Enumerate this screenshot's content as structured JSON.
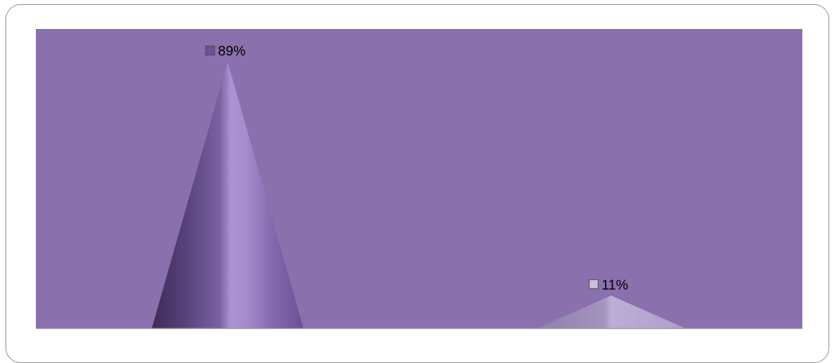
{
  "chart_data": {
    "type": "bar",
    "shape": "cone",
    "categories": [
      "",
      ""
    ],
    "values": [
      89,
      11
    ],
    "value_unit": "%",
    "data_labels": [
      "89%",
      "11%"
    ],
    "title": "",
    "xlabel": "",
    "ylabel": "",
    "ylim": [
      0,
      100
    ],
    "grid": false,
    "legend": "none",
    "colors": {
      "plot_background": "#8A70AD",
      "series": [
        "#8467AC",
        "#B7A9CC"
      ],
      "marker_fills": [
        "#6E5196",
        "#CBBFDC"
      ],
      "axis_line": "#999999"
    }
  }
}
